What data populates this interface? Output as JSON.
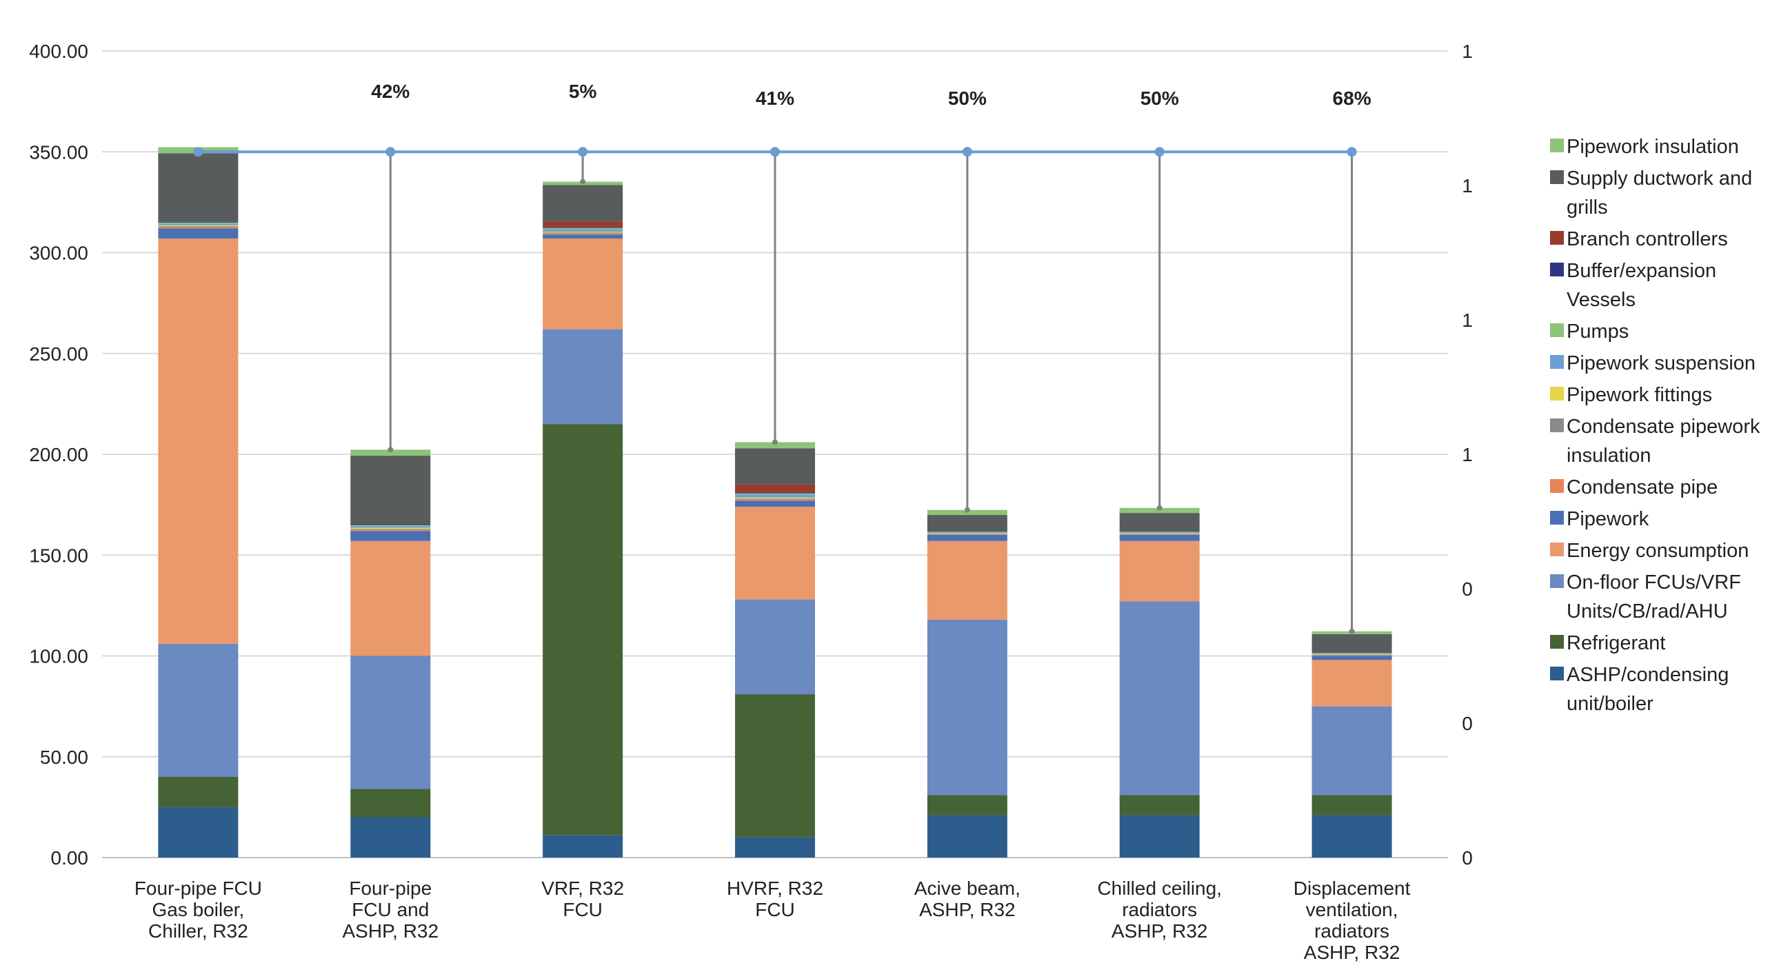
{
  "chart_data": {
    "type": "bar",
    "stacked": true,
    "title": "",
    "xlabel": "",
    "ylabel": "",
    "ylim": [
      0,
      400
    ],
    "y_ticks": [
      "0.00",
      "50.00",
      "100.00",
      "150.00",
      "200.00",
      "250.00",
      "300.00",
      "350.00",
      "400.00"
    ],
    "y2_ticks": [
      "0",
      "0",
      "0",
      "1",
      "1",
      "1",
      "1"
    ],
    "grid": "horizontal",
    "legend_position": "right",
    "categories": [
      [
        "Four-pipe FCU",
        "Gas boiler,",
        "Chiller, R32"
      ],
      [
        "Four-pipe",
        "FCU and",
        "ASHP, R32"
      ],
      [
        "VRF, R32",
        "FCU"
      ],
      [
        "HVRF, R32",
        "FCU"
      ],
      [
        "Acive beam,",
        "ASHP, R32"
      ],
      [
        "Chilled ceiling,",
        "radiators",
        "ASHP, R32"
      ],
      [
        "Displacement",
        "ventilation,",
        "radiators",
        "ASHP, R32"
      ]
    ],
    "percent_labels": [
      "",
      "42%",
      "5%",
      "41%",
      "50%",
      "50%",
      "68%"
    ],
    "line_series": {
      "color": "#6b9bd1",
      "value": 350,
      "drop_color": "#808080"
    },
    "series": [
      {
        "name": "ASHP/condensing unit/boiler",
        "color": "#2d5d8c",
        "values": [
          25,
          20,
          11,
          10,
          21,
          21,
          21
        ]
      },
      {
        "name": "Refrigerant",
        "color": "#456335",
        "values": [
          15,
          14,
          204,
          71,
          10,
          10,
          10
        ]
      },
      {
        "name": "On-floor FCUs/VRF Units/CB/rad/AHU",
        "color": "#6b8ac2",
        "values": [
          66,
          66,
          47,
          47,
          87,
          96,
          44
        ]
      },
      {
        "name": "Energy consumption",
        "color": "#e9996a",
        "values": [
          201,
          57,
          45,
          46,
          39,
          30,
          23
        ]
      },
      {
        "name": "Pipework",
        "color": "#4a6fb5",
        "values": [
          5,
          5,
          2,
          3,
          3,
          3,
          2
        ]
      },
      {
        "name": "Condensate pipe",
        "color": "#e8845a",
        "values": [
          0.5,
          0.5,
          0.5,
          0.5,
          0.3,
          0.3,
          0.3
        ]
      },
      {
        "name": "Condensate pipework insulation",
        "color": "#8a8a8a",
        "values": [
          0.5,
          0.5,
          0.5,
          0.5,
          0.3,
          0.3,
          0.3
        ]
      },
      {
        "name": "Pipework fittings",
        "color": "#e6d44d",
        "values": [
          0.6,
          0.6,
          0.4,
          0.6,
          0.3,
          0.3,
          0.3
        ]
      },
      {
        "name": "Pipework suspension",
        "color": "#6a9fd4",
        "values": [
          0.8,
          0.8,
          1.2,
          1.5,
          0.4,
          0.4,
          0.3
        ]
      },
      {
        "name": "Pumps",
        "color": "#8cc47a",
        "values": [
          0.5,
          0.5,
          0.6,
          0.5,
          0.3,
          0.3,
          0.3
        ]
      },
      {
        "name": "Buffer/expansion Vessels",
        "color": "#2f3580",
        "values": [
          0.4,
          0.4,
          0.3,
          0.4,
          0.3,
          0.3,
          0.3
        ]
      },
      {
        "name": "Branch controllers",
        "color": "#9a3a2c",
        "values": [
          0,
          0,
          3,
          4,
          0,
          0,
          0
        ]
      },
      {
        "name": "Supply ductwork and grills",
        "color": "#595c5c",
        "values": [
          34,
          34,
          18,
          18,
          8,
          9,
          9
        ]
      },
      {
        "name": "Pipework insulation",
        "color": "#8cc47a",
        "values": [
          3,
          3,
          1.7,
          3,
          2.5,
          2.5,
          1.4
        ]
      }
    ]
  }
}
